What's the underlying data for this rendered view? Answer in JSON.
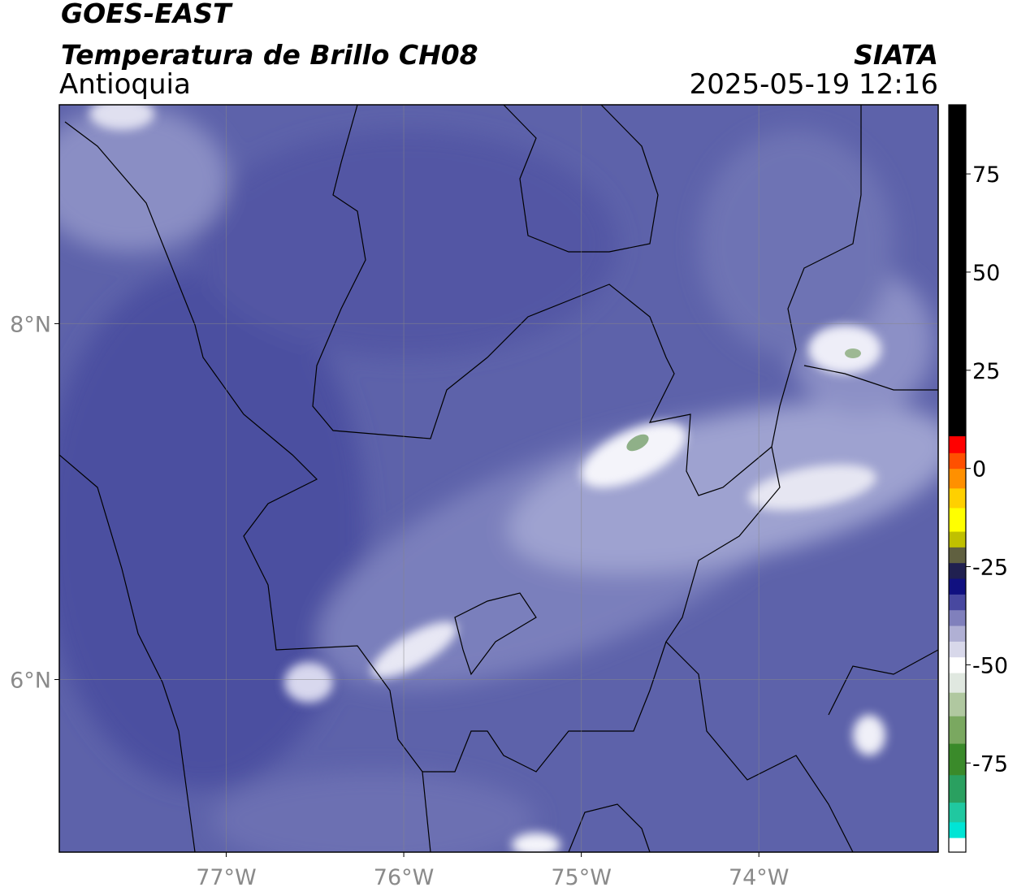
{
  "header": {
    "title": "GOES-EAST",
    "subtitle": "Temperatura de Brillo CH08",
    "region": "Antioquia",
    "source": "SIATA",
    "datetime": "2025-05-19 12:16"
  },
  "map": {
    "xlim": [
      -77.94,
      -72.99
    ],
    "ylim": [
      5.03,
      9.23
    ],
    "xticks": [
      {
        "value": -77,
        "label": "77°W"
      },
      {
        "value": -76,
        "label": "76°W"
      },
      {
        "value": -75,
        "label": "75°W"
      },
      {
        "value": -74,
        "label": "74°W"
      }
    ],
    "yticks": [
      {
        "value": 6,
        "label": "6°N"
      },
      {
        "value": 8,
        "label": "8°N"
      }
    ],
    "grid": true
  },
  "colorbar": {
    "range": [
      -97.7,
      92.6
    ],
    "ticks": [
      75,
      50,
      25,
      0,
      -25,
      -50,
      -75
    ],
    "stops": [
      {
        "value": -97.7,
        "color": "#ffffff"
      },
      {
        "value": -94,
        "color": "#00e5d5"
      },
      {
        "value": -90,
        "color": "#20c8a0"
      },
      {
        "value": -85,
        "color": "#2aa060"
      },
      {
        "value": -78,
        "color": "#3a8a2a"
      },
      {
        "value": -70,
        "color": "#7aa860"
      },
      {
        "value": -63,
        "color": "#b0c8a0"
      },
      {
        "value": -57,
        "color": "#e0e8e0"
      },
      {
        "value": -52,
        "color": "#ffffff"
      },
      {
        "value": -48,
        "color": "#d8d8ea"
      },
      {
        "value": -44,
        "color": "#b0b0d4"
      },
      {
        "value": -40,
        "color": "#8080bc"
      },
      {
        "value": -36,
        "color": "#4848a0"
      },
      {
        "value": -32,
        "color": "#101080"
      },
      {
        "value": -28,
        "color": "#202050"
      },
      {
        "value": -24,
        "color": "#606040"
      },
      {
        "value": -20,
        "color": "#c0c000"
      },
      {
        "value": -16,
        "color": "#ffff00"
      },
      {
        "value": -10,
        "color": "#ffd000"
      },
      {
        "value": -5,
        "color": "#ff9000"
      },
      {
        "value": 0,
        "color": "#ff5000"
      },
      {
        "value": 4,
        "color": "#ff0000"
      },
      {
        "value": 8.3,
        "color": "#000000"
      }
    ]
  }
}
